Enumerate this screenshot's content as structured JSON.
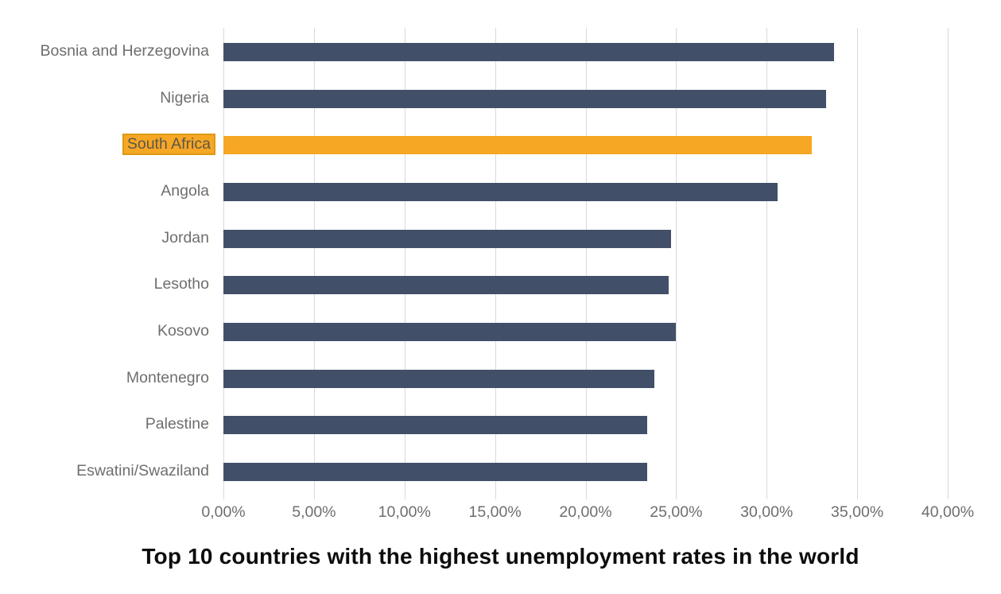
{
  "title": "Top 10 countries with the highest unemployment rates in the world",
  "colors": {
    "bar": "#424F68",
    "highlight": "#F6A724",
    "highlight_border": "#DE9813",
    "grid": "#D9D9D9",
    "label_text": "#6E6E6E",
    "title_text": "#0C0C0C"
  },
  "chart_data": {
    "type": "bar",
    "orientation": "horizontal",
    "title": "Top 10 countries with the highest unemployment rates in the world",
    "categories": [
      "Bosnia and Herzegovina",
      "Nigeria",
      "South Africa",
      "Angola",
      "Jordan",
      "Lesotho",
      "Kosovo",
      "Montenegro",
      "Palestine",
      "Eswatini/Swaziland"
    ],
    "values": [
      33.7,
      33.3,
      32.5,
      30.6,
      24.7,
      24.6,
      25.0,
      23.8,
      23.4,
      23.4
    ],
    "value_unit": "%",
    "highlight_index": 2,
    "highlighted_category": "South Africa",
    "xlabel": "",
    "ylabel": "",
    "xlim": [
      0,
      40
    ],
    "x_ticks": [
      "0,00%",
      "5,00%",
      "10,00%",
      "15,00%",
      "20,00%",
      "25,00%",
      "30,00%",
      "35,00%",
      "40,00%"
    ],
    "grid": true,
    "legend": false
  }
}
